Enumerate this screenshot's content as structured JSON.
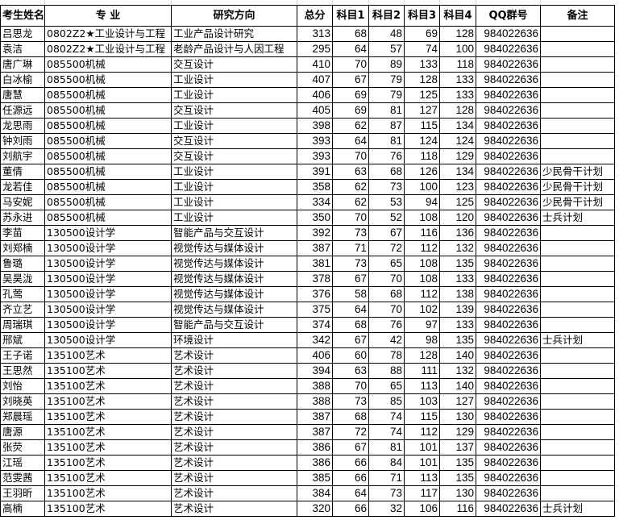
{
  "headers": [
    "考生姓名",
    "专  业",
    "研究方向",
    "总分",
    "科目1",
    "科目2",
    "科目3",
    "科目4",
    "QQ群号",
    "备注"
  ],
  "rows": [
    [
      "吕思龙",
      "0802Z2★工业设计与工程",
      "工业产品设计研究",
      "313",
      "68",
      "48",
      "69",
      "128",
      "984022636",
      ""
    ],
    [
      "袁洁",
      "0802Z2★工业设计与工程",
      "老龄产品设计与人因工程",
      "295",
      "64",
      "57",
      "74",
      "100",
      "984022636",
      ""
    ],
    [
      "唐广琳",
      "085500机械",
      "交互设计",
      "410",
      "70",
      "89",
      "133",
      "118",
      "984022636",
      ""
    ],
    [
      "白冰榆",
      "085500机械",
      "工业设计",
      "407",
      "67",
      "79",
      "128",
      "133",
      "984022636",
      ""
    ],
    [
      "唐慧",
      "085500机械",
      "工业设计",
      "406",
      "69",
      "79",
      "125",
      "133",
      "984022636",
      ""
    ],
    [
      "任源远",
      "085500机械",
      "交互设计",
      "405",
      "69",
      "81",
      "127",
      "128",
      "984022636",
      ""
    ],
    [
      "龙思雨",
      "085500机械",
      "工业设计",
      "398",
      "62",
      "87",
      "115",
      "134",
      "984022636",
      ""
    ],
    [
      "钟刘雨",
      "085500机械",
      "交互设计",
      "393",
      "64",
      "81",
      "124",
      "124",
      "984022636",
      ""
    ],
    [
      "刘航宇",
      "085500机械",
      "交互设计",
      "393",
      "70",
      "76",
      "118",
      "129",
      "984022636",
      ""
    ],
    [
      "董倩",
      "085500机械",
      "工业设计",
      "391",
      "63",
      "68",
      "126",
      "134",
      "984022636",
      "少民骨干计划"
    ],
    [
      "龙若佳",
      "085500机械",
      "工业设计",
      "358",
      "62",
      "73",
      "100",
      "123",
      "984022636",
      "少民骨干计划"
    ],
    [
      "马安妮",
      "085500机械",
      "工业设计",
      "334",
      "62",
      "53",
      "94",
      "125",
      "984022636",
      "少民骨干计划"
    ],
    [
      "苏永进",
      "085500机械",
      "工业设计",
      "350",
      "70",
      "52",
      "108",
      "120",
      "984022636",
      "士兵计划"
    ],
    [
      "李苗",
      "130500设计学",
      "智能产品与交互设计",
      "392",
      "73",
      "67",
      "116",
      "136",
      "984022636",
      ""
    ],
    [
      "刘郑楠",
      "130500设计学",
      "视觉传达与媒体设计",
      "387",
      "71",
      "72",
      "112",
      "132",
      "984022636",
      ""
    ],
    [
      "鲁璐",
      "130500设计学",
      "视觉传达与媒体设计",
      "381",
      "73",
      "65",
      "108",
      "135",
      "984022636",
      ""
    ],
    [
      "吴昊泷",
      "130500设计学",
      "视觉传达与媒体设计",
      "378",
      "67",
      "70",
      "108",
      "133",
      "984022636",
      ""
    ],
    [
      "孔莺",
      "130500设计学",
      "视觉传达与媒体设计",
      "376",
      "58",
      "68",
      "112",
      "138",
      "984022636",
      ""
    ],
    [
      "齐立艺",
      "130500设计学",
      "视觉传达与媒体设计",
      "375",
      "64",
      "70",
      "102",
      "139",
      "984022636",
      ""
    ],
    [
      "周瑞琪",
      "130500设计学",
      "智能产品与交互设计",
      "374",
      "68",
      "76",
      "97",
      "133",
      "984022636",
      ""
    ],
    [
      "邢斌",
      "130500设计学",
      "环境设计",
      "342",
      "67",
      "42",
      "98",
      "135",
      "984022636",
      "士兵计划"
    ],
    [
      "王子诺",
      "135100艺术",
      "艺术设计",
      "406",
      "60",
      "78",
      "128",
      "140",
      "984022636",
      ""
    ],
    [
      "王思然",
      "135100艺术",
      "艺术设计",
      "394",
      "63",
      "88",
      "111",
      "132",
      "984022636",
      ""
    ],
    [
      "刘怡",
      "135100艺术",
      "艺术设计",
      "388",
      "70",
      "65",
      "113",
      "140",
      "984022636",
      ""
    ],
    [
      "刘晓英",
      "135100艺术",
      "艺术设计",
      "388",
      "73",
      "85",
      "103",
      "127",
      "984022636",
      ""
    ],
    [
      "郑晨瑶",
      "135100艺术",
      "艺术设计",
      "387",
      "68",
      "74",
      "115",
      "130",
      "984022636",
      ""
    ],
    [
      "唐源",
      "135100艺术",
      "艺术设计",
      "387",
      "72",
      "74",
      "112",
      "129",
      "984022636",
      ""
    ],
    [
      "张荧",
      "135100艺术",
      "艺术设计",
      "386",
      "67",
      "81",
      "101",
      "137",
      "984022636",
      ""
    ],
    [
      "江瑶",
      "135100艺术",
      "艺术设计",
      "386",
      "66",
      "84",
      "101",
      "135",
      "984022636",
      ""
    ],
    [
      "范雯茜",
      "135100艺术",
      "艺术设计",
      "385",
      "66",
      "71",
      "113",
      "135",
      "984022636",
      ""
    ],
    [
      "王羽昕",
      "135100艺术",
      "艺术设计",
      "384",
      "64",
      "73",
      "117",
      "130",
      "984022636",
      ""
    ],
    [
      "高楠",
      "135100艺术",
      "艺术设计",
      "320",
      "66",
      "32",
      "106",
      "116",
      "984022636",
      "士兵计划"
    ]
  ]
}
